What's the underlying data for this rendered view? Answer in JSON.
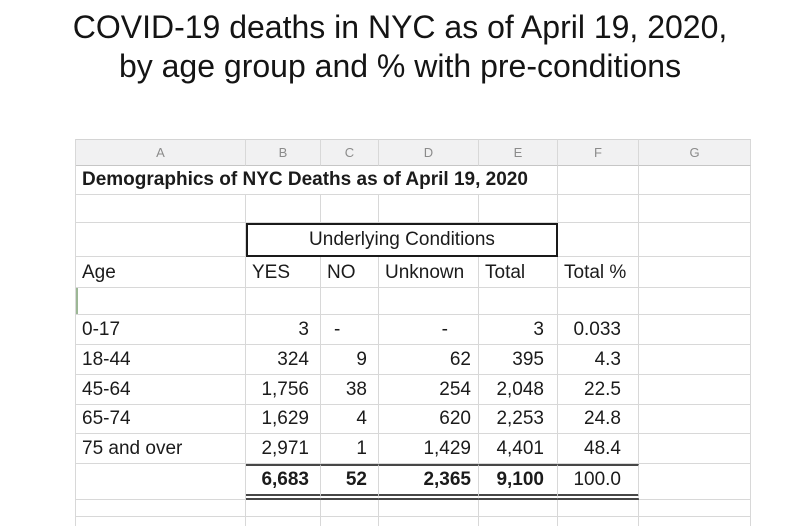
{
  "title": {
    "line1": "COVID-19 deaths in NYC as of April 19, 2020,",
    "line2": "by age group and % with pre-conditions"
  },
  "spreadsheet": {
    "column_letters": [
      "A",
      "B",
      "C",
      "D",
      "E",
      "F",
      "G"
    ],
    "sheet_title": "Demographics of NYC Deaths as of April 19, 2020",
    "conditions_box_label": "Underlying Conditions",
    "headers": {
      "age": "Age",
      "yes": "YES",
      "no": "NO",
      "unknown": "Unknown",
      "total": "Total",
      "total_pct": "Total %"
    },
    "rows": [
      {
        "age": "0-17",
        "yes": "3",
        "no": "-",
        "unknown": "-",
        "total": "3",
        "total_pct": "0.033"
      },
      {
        "age": "18-44",
        "yes": "324",
        "no": "9",
        "unknown": "62",
        "total": "395",
        "total_pct": "4.3"
      },
      {
        "age": "45-64",
        "yes": "1,756",
        "no": "38",
        "unknown": "254",
        "total": "2,048",
        "total_pct": "22.5"
      },
      {
        "age": "65-74",
        "yes": "1,629",
        "no": "4",
        "unknown": "620",
        "total": "2,253",
        "total_pct": "24.8"
      },
      {
        "age": "75 and over",
        "yes": "2,971",
        "no": "1",
        "unknown": "1,429",
        "total": "4,401",
        "total_pct": "48.4"
      }
    ],
    "totals": {
      "yes": "6,683",
      "no": "52",
      "unknown": "2,365",
      "total": "9,100",
      "total_pct": "100.0"
    }
  },
  "colors": {
    "grid_line": "#d8d8d8",
    "header_background": "#f1f1f2",
    "header_letter": "#8b8b8b",
    "box_border": "#1a1a1a",
    "totals_border": "#474747",
    "selection_green": "#9cb795",
    "text": "#1b1b1b"
  }
}
